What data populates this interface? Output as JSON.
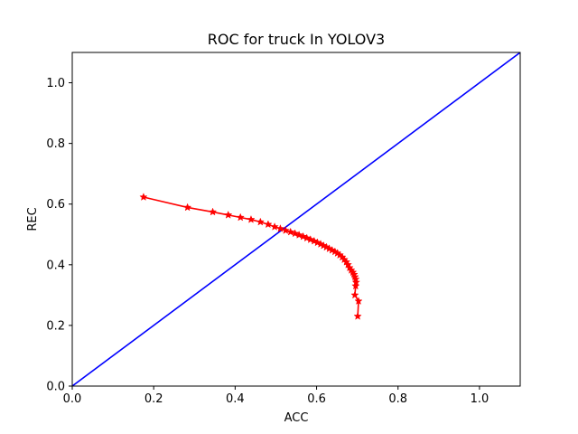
{
  "chart_data": {
    "type": "line",
    "title": "ROC for truck In YOLOV3",
    "xlabel": "ACC",
    "ylabel": "REC",
    "xlim": [
      0.0,
      1.1
    ],
    "ylim": [
      0.0,
      1.1
    ],
    "xticks": [
      0.0,
      0.2,
      0.4,
      0.6,
      0.8,
      1.0
    ],
    "yticks": [
      0.0,
      0.2,
      0.4,
      0.6,
      0.8,
      1.0
    ],
    "xtick_labels": [
      "0.0",
      "0.2",
      "0.4",
      "0.6",
      "0.8",
      "1.0"
    ],
    "ytick_labels": [
      "0.0",
      "0.2",
      "0.4",
      "0.6",
      "0.8",
      "1.0"
    ],
    "grid": false,
    "series": [
      {
        "color": "#0000ff",
        "marker": "none",
        "x": [
          0.0,
          1.1
        ],
        "y": [
          0.0,
          1.1
        ]
      },
      {
        "color": "#ff0000",
        "marker": "star",
        "x": [
          0.175,
          0.283,
          0.345,
          0.383,
          0.413,
          0.439,
          0.462,
          0.481,
          0.497,
          0.511,
          0.524,
          0.536,
          0.547,
          0.557,
          0.567,
          0.576,
          0.585,
          0.594,
          0.602,
          0.61,
          0.617,
          0.624,
          0.631,
          0.638,
          0.645,
          0.651,
          0.657,
          0.663,
          0.668,
          0.673,
          0.677,
          0.681,
          0.685,
          0.689,
          0.692,
          0.694,
          0.696,
          0.697,
          0.696,
          0.694,
          0.703,
          0.701
        ],
        "y": [
          0.623,
          0.589,
          0.574,
          0.564,
          0.556,
          0.549,
          0.541,
          0.533,
          0.525,
          0.519,
          0.513,
          0.508,
          0.503,
          0.498,
          0.493,
          0.488,
          0.483,
          0.478,
          0.473,
          0.468,
          0.463,
          0.458,
          0.453,
          0.448,
          0.443,
          0.438,
          0.432,
          0.425,
          0.417,
          0.409,
          0.4,
          0.39,
          0.382,
          0.375,
          0.368,
          0.36,
          0.352,
          0.342,
          0.33,
          0.3,
          0.28,
          0.23
        ]
      }
    ]
  }
}
